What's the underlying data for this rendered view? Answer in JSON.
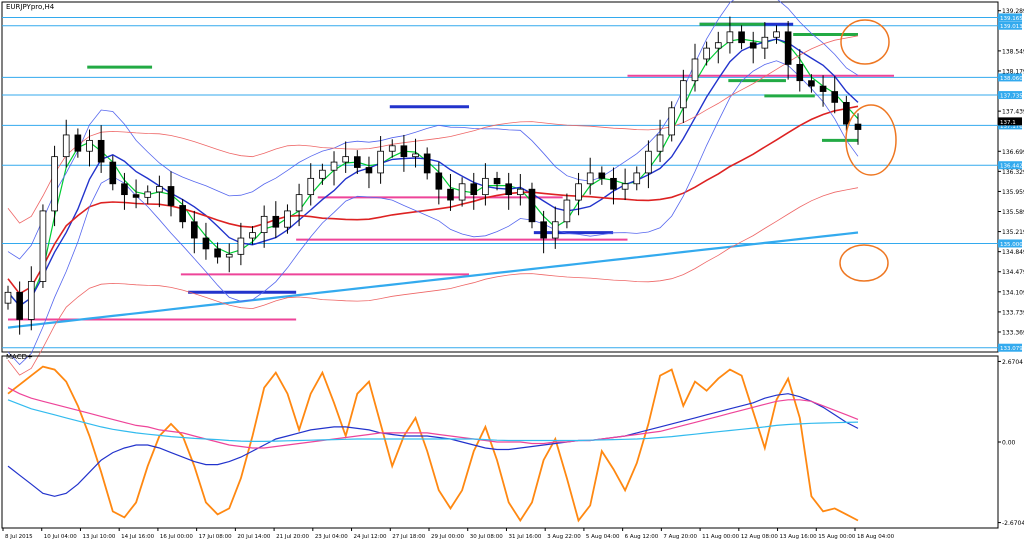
{
  "chart_data": [
    {
      "type": "line",
      "panel": "price",
      "title": "EURJPYpro,H4",
      "ylim": [
        133.0,
        139.45
      ],
      "y_ticks": [
        139.289,
        138.549,
        138.179,
        137.439,
        136.699,
        136.329,
        135.959,
        135.589,
        135.219,
        134.849,
        134.479,
        134.109,
        133.739,
        133.369
      ],
      "x_tick_labels": [
        "8 Jul 2015",
        "10 Jul 04:00",
        "13 Jul 10:00",
        "14 Jul 16:00",
        "16 Jul 00:00",
        "17 Jul 08:00",
        "20 Jul 14:00",
        "21 Jul 20:00",
        "23 Jul 04:00",
        "24 Jul 12:00",
        "27 Jul 18:00",
        "29 Jul 00:00",
        "30 Jul 08:00",
        "31 Jul 16:00",
        "3 Aug 22:00",
        "5 Aug 04:00",
        "6 Aug 12:00",
        "7 Aug 20:00",
        "11 Aug 00:00",
        "12 Aug 08:00",
        "13 Aug 16:00",
        "15 Aug 00:00",
        "18 Aug 04:00"
      ],
      "price_labels": [
        "139.165",
        "139.013",
        "138.060",
        "137.735",
        "137.176",
        "136.442",
        "135.000",
        "133.079"
      ],
      "current_price_label": "137.1",
      "levels": [
        139.165,
        139.013,
        138.06,
        137.735,
        137.176,
        136.442,
        135.0,
        133.079
      ],
      "closes": [
        134.1,
        133.6,
        134.3,
        135.6,
        136.6,
        137.0,
        136.7,
        136.9,
        136.5,
        136.1,
        135.9,
        135.85,
        135.95,
        136.05,
        135.7,
        135.4,
        135.1,
        134.9,
        134.75,
        134.8,
        135.1,
        135.2,
        135.5,
        135.3,
        135.6,
        135.9,
        136.2,
        136.35,
        136.5,
        136.6,
        136.4,
        136.3,
        136.7,
        136.8,
        136.6,
        136.65,
        136.3,
        136.0,
        135.8,
        136.1,
        135.9,
        136.2,
        136.1,
        135.9,
        136.0,
        135.4,
        135.1,
        135.4,
        135.8,
        136.1,
        136.3,
        136.2,
        136.0,
        136.1,
        136.3,
        136.7,
        137.0,
        137.5,
        138.0,
        138.4,
        138.6,
        138.7,
        138.9,
        138.7,
        138.6,
        138.8,
        138.9,
        138.3,
        138.0,
        137.9,
        137.8,
        137.6,
        137.2,
        137.1
      ],
      "series": [
        {
          "name": "",
          "color": "#00cc33"
        },
        {
          "name": "",
          "color": "#2233cc"
        },
        {
          "name": "",
          "color": "#dd2222"
        },
        {
          "name": "",
          "color": "#33aaee"
        }
      ],
      "horizontal_marks": [
        {
          "color": "#22aa44",
          "price": 138.25
        },
        {
          "color": "#2233cc",
          "price": 137.52
        },
        {
          "color": "#ee4499",
          "price": 135.85
        },
        {
          "color": "#ee4499",
          "price": 135.07
        },
        {
          "color": "#ee4499",
          "price": 134.43
        },
        {
          "color": "#2233cc",
          "price": 134.1
        },
        {
          "color": "#ee4499",
          "price": 133.6
        },
        {
          "color": "#2233cc",
          "price": 135.2
        },
        {
          "color": "#2233cc",
          "price": 139.04
        },
        {
          "color": "#22aa44",
          "price": 139.04
        },
        {
          "color": "#22aa44",
          "price": 138.85
        },
        {
          "color": "#ee4499",
          "price": 138.09
        },
        {
          "color": "#22aa44",
          "price": 138.0
        },
        {
          "color": "#22aa44",
          "price": 137.72
        },
        {
          "color": "#22aa44",
          "price": 136.9
        }
      ],
      "annotation_color": "#ee7722"
    },
    {
      "type": "line",
      "panel": "oscillator",
      "title": "MACD+",
      "ylim": [
        -2.85,
        2.85
      ],
      "y_ticks": [
        2.6704,
        0.0,
        -2.6704
      ],
      "y_tick_labels": [
        "2.6704",
        "0.00",
        "-2.6704"
      ],
      "series": [
        {
          "name": "",
          "color": "#ff8811",
          "values": [
            1.6,
            1.9,
            2.2,
            2.5,
            2.4,
            2.0,
            1.2,
            0.2,
            -1.0,
            -2.3,
            -2.5,
            -2.0,
            -0.8,
            0.2,
            0.6,
            0.2,
            -0.8,
            -2.0,
            -2.4,
            -2.2,
            -1.2,
            0.2,
            1.8,
            2.3,
            1.6,
            0.4,
            1.6,
            2.3,
            1.3,
            0.2,
            1.6,
            2.0,
            0.6,
            -0.8,
            0.2,
            0.8,
            -0.3,
            -1.6,
            -2.2,
            -1.6,
            -0.3,
            0.5,
            -0.6,
            -2.0,
            -2.6,
            -2.0,
            -0.6,
            0.1,
            -1.2,
            -2.6,
            -2.1,
            -0.3,
            -0.9,
            -1.6,
            -0.7,
            0.6,
            2.2,
            2.4,
            1.2,
            2.0,
            1.7,
            2.1,
            2.4,
            2.2,
            1.0,
            -0.2,
            1.4,
            2.1,
            0.8,
            -1.8,
            -2.3,
            -2.2,
            -2.4,
            -2.6
          ]
        },
        {
          "name": "",
          "color": "#2233cc",
          "values": [
            -0.8,
            -1.1,
            -1.4,
            -1.7,
            -1.8,
            -1.7,
            -1.4,
            -1.0,
            -0.6,
            -0.35,
            -0.2,
            -0.1,
            -0.1,
            -0.2,
            -0.35,
            -0.5,
            -0.65,
            -0.75,
            -0.75,
            -0.65,
            -0.5,
            -0.3,
            -0.1,
            0.1,
            0.2,
            0.3,
            0.4,
            0.45,
            0.5,
            0.5,
            0.45,
            0.4,
            0.3,
            0.25,
            0.2,
            0.2,
            0.2,
            0.15,
            0.1,
            0.0,
            -0.1,
            -0.2,
            -0.25,
            -0.25,
            -0.2,
            -0.15,
            -0.1,
            -0.05,
            0.0,
            0.05,
            0.05,
            0.1,
            0.15,
            0.2,
            0.3,
            0.4,
            0.5,
            0.6,
            0.7,
            0.8,
            0.9,
            1.0,
            1.1,
            1.2,
            1.3,
            1.45,
            1.55,
            1.6,
            1.5,
            1.35,
            1.15,
            0.9,
            0.65,
            0.45
          ]
        },
        {
          "name": "",
          "color": "#ee4499",
          "values": [
            1.8,
            1.6,
            1.45,
            1.35,
            1.25,
            1.15,
            1.05,
            0.95,
            0.85,
            0.75,
            0.65,
            0.55,
            0.5,
            0.4,
            0.35,
            0.3,
            0.2,
            0.1,
            0.0,
            -0.1,
            -0.15,
            -0.2,
            -0.2,
            -0.15,
            -0.1,
            -0.05,
            0.0,
            0.05,
            0.1,
            0.15,
            0.2,
            0.25,
            0.3,
            0.3,
            0.3,
            0.3,
            0.3,
            0.25,
            0.2,
            0.15,
            0.1,
            0.05,
            0.0,
            0.0,
            0.0,
            -0.05,
            -0.05,
            0.0,
            0.0,
            0.05,
            0.05,
            0.1,
            0.15,
            0.2,
            0.25,
            0.3,
            0.35,
            0.45,
            0.55,
            0.65,
            0.75,
            0.85,
            0.95,
            1.05,
            1.15,
            1.25,
            1.35,
            1.4,
            1.4,
            1.35,
            1.2,
            1.05,
            0.9,
            0.75
          ]
        },
        {
          "name": "",
          "color": "#33bbee",
          "values": [
            1.4,
            1.25,
            1.1,
            1.0,
            0.9,
            0.8,
            0.7,
            0.6,
            0.5,
            0.42,
            0.36,
            0.3,
            0.26,
            0.22,
            0.18,
            0.15,
            0.12,
            0.1,
            0.08,
            0.05,
            0.03,
            0.02,
            0.02,
            0.03,
            0.04,
            0.05,
            0.06,
            0.07,
            0.08,
            0.09,
            0.1,
            0.1,
            0.1,
            0.1,
            0.1,
            0.1,
            0.1,
            0.1,
            0.1,
            0.1,
            0.1,
            0.08,
            0.06,
            0.05,
            0.05,
            0.05,
            0.05,
            0.05,
            0.05,
            0.05,
            0.06,
            0.07,
            0.08,
            0.09,
            0.1,
            0.12,
            0.15,
            0.18,
            0.22,
            0.26,
            0.3,
            0.34,
            0.38,
            0.42,
            0.46,
            0.5,
            0.55,
            0.58,
            0.6,
            0.62,
            0.63,
            0.64,
            0.65,
            0.66
          ]
        }
      ]
    }
  ]
}
